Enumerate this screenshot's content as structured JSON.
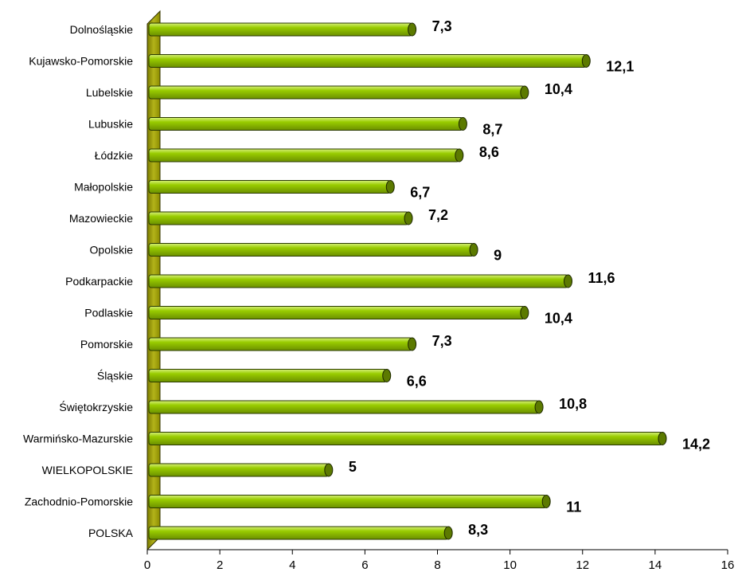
{
  "chart_data": {
    "type": "bar",
    "orientation": "horizontal",
    "title": "",
    "xlabel": "",
    "ylabel": "",
    "categories": [
      "Dolnośląskie",
      "Kujawsko-Pomorskie",
      "Lubelskie",
      "Lubuskie",
      "Łódzkie",
      "Małopolskie",
      "Mazowieckie",
      "Opolskie",
      "Podkarpackie",
      "Podlaskie",
      "Pomorskie",
      "Śląskie",
      "Świętokrzyskie",
      "Warmińsko-Mazurskie",
      "WIELKOPOLSKIE",
      "Zachodnio-Pomorskie",
      "POLSKA"
    ],
    "values": [
      7.3,
      12.1,
      10.4,
      8.7,
      8.6,
      6.7,
      7.2,
      9,
      11.6,
      10.4,
      7.3,
      6.6,
      10.8,
      14.2,
      5,
      11,
      8.3
    ],
    "value_labels": [
      "7,3",
      "12,1",
      "10,4",
      "8,7",
      "8,6",
      "6,7",
      "7,2",
      "9",
      "11,6",
      "10,4",
      "7,3",
      "6,6",
      "10,8",
      "14,2",
      "5",
      "11",
      "8,3"
    ],
    "xlim": [
      0,
      16
    ],
    "xticks": [
      0,
      2,
      4,
      6,
      8,
      10,
      12,
      14,
      16
    ],
    "xtick_labels": [
      "0",
      "2",
      "4",
      "6",
      "8",
      "10",
      "12",
      "14",
      "16"
    ],
    "grid": false,
    "legend": "none",
    "bar_color": "#99cc00",
    "bar_highlight": "#d6f07a",
    "bar_end_color": "#5c7a00",
    "axis_wall_color": "#999900"
  }
}
